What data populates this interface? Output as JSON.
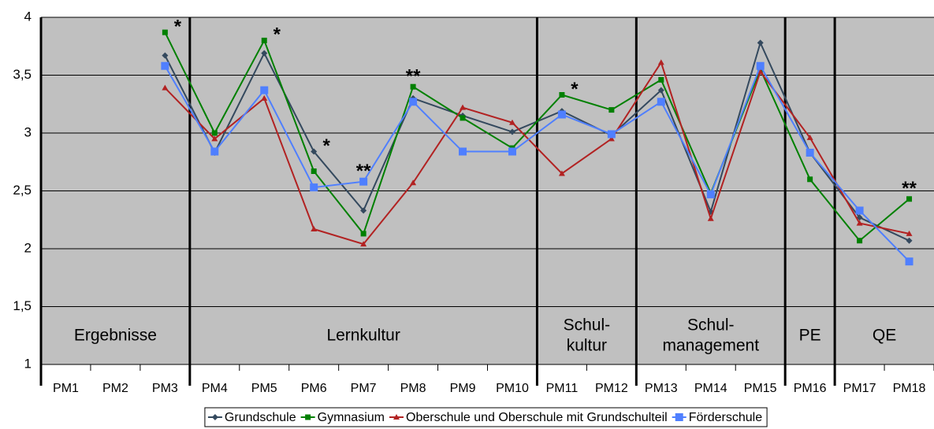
{
  "chart_data": {
    "type": "line",
    "categories": [
      "PM1",
      "PM2",
      "PM3",
      "PM4",
      "PM5",
      "PM6",
      "PM7",
      "PM8",
      "PM9",
      "PM10",
      "PM11",
      "PM12",
      "PM13",
      "PM14",
      "PM15",
      "PM16",
      "PM17",
      "PM18"
    ],
    "series": [
      {
        "name": "Grundschule",
        "color": "#34495e",
        "marker": "diamond",
        "values": [
          null,
          null,
          3.67,
          2.83,
          3.69,
          2.84,
          2.33,
          3.3,
          3.15,
          3.01,
          3.19,
          2.98,
          3.37,
          2.32,
          3.78,
          2.83,
          2.27,
          2.07
        ]
      },
      {
        "name": "Gymnasium",
        "color": "#008000",
        "marker": "square",
        "values": [
          null,
          null,
          3.87,
          3.0,
          3.8,
          2.67,
          2.13,
          3.4,
          3.13,
          2.87,
          3.33,
          3.2,
          3.46,
          2.48,
          3.55,
          2.6,
          2.07,
          2.43
        ]
      },
      {
        "name": "Oberschule und Oberschule mit Grundschulteil",
        "color": "#b22222",
        "marker": "triangle",
        "values": [
          null,
          null,
          3.39,
          2.95,
          3.3,
          2.17,
          2.04,
          2.57,
          3.22,
          3.09,
          2.65,
          2.95,
          3.61,
          2.26,
          3.53,
          2.96,
          2.22,
          2.13
        ]
      },
      {
        "name": "Förderschule",
        "color": "#4f7fff",
        "marker": "bigsquare",
        "values": [
          null,
          null,
          3.58,
          2.84,
          3.37,
          2.53,
          2.58,
          3.27,
          2.84,
          2.84,
          3.16,
          2.99,
          3.27,
          2.47,
          3.58,
          2.83,
          2.33,
          1.89
        ]
      }
    ],
    "significance": [
      null,
      null,
      "*",
      null,
      "*",
      "*",
      "**",
      "**",
      null,
      null,
      "*",
      null,
      null,
      null,
      null,
      null,
      null,
      "**"
    ],
    "sections": [
      {
        "lines": [
          "Ergebnisse"
        ],
        "categories": 3
      },
      {
        "lines": [
          "Lernkultur"
        ],
        "categories": 7
      },
      {
        "lines": [
          "Schul-",
          "kultur"
        ],
        "categories": 2
      },
      {
        "lines": [
          "Schul-",
          "management"
        ],
        "categories": 3
      },
      {
        "lines": [
          "PE"
        ],
        "categories": 1
      },
      {
        "lines": [
          "QE"
        ],
        "categories": 2
      }
    ],
    "ylim": [
      1,
      4
    ],
    "yticks": [
      1,
      {
        "value": 1.5,
        "label": "1,5"
      },
      2,
      {
        "value": 2.5,
        "label": "2,5"
      },
      3,
      {
        "value": 3.5,
        "label": "3,5"
      },
      4
    ],
    "grid": true,
    "background": "#c0c0c0",
    "legend": "bottom"
  }
}
